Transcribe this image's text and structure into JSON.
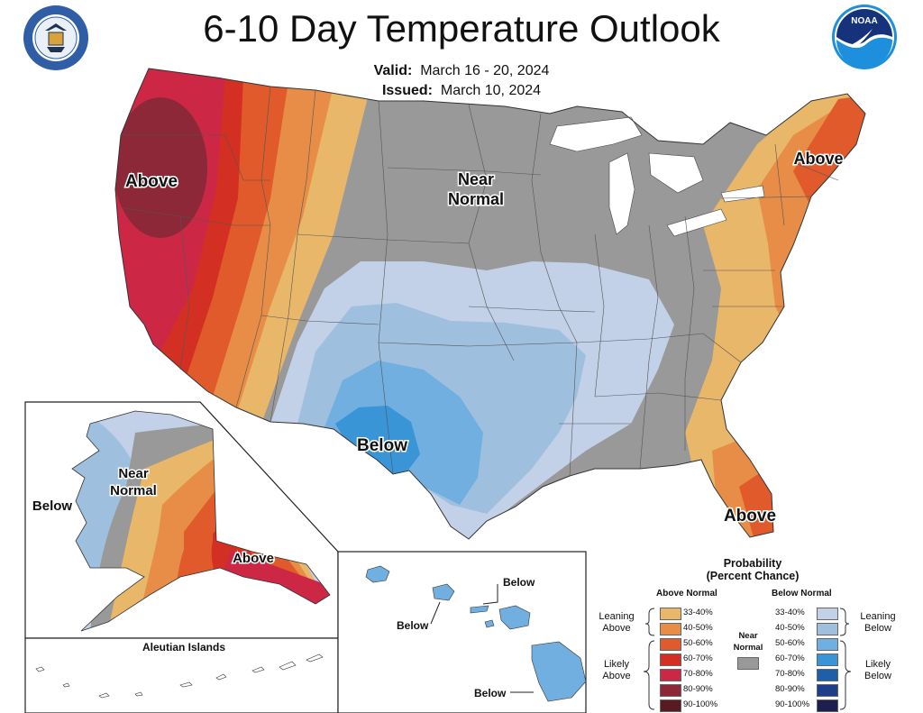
{
  "header": {
    "title": "6-10 Day Temperature Outlook",
    "valid_label": "Valid:",
    "valid_value": "March 16 - 20, 2024",
    "issued_label": "Issued:",
    "issued_value": "March 10, 2024",
    "seal_logo_text": "DEPARTMENT OF COMMERCE UNITED STATES OF AMERICA",
    "noaa_logo_text": "NOAA"
  },
  "map": {
    "labels": {
      "west_above": "Above",
      "near_normal_1": "Near",
      "near_normal_2": "Normal",
      "northeast_above": "Above",
      "southwest_below": "Below",
      "florida_above": "Above"
    },
    "alaska": {
      "below": "Below",
      "near_normal_1": "Near",
      "near_normal_2": "Normal",
      "above": "Above",
      "aleutian_title": "Aleutian Islands"
    },
    "hawaii": {
      "below_top": "Below",
      "below_left": "Below",
      "below_bottom": "Below"
    }
  },
  "legend": {
    "title_1": "Probability",
    "title_2": "(Percent Chance)",
    "above_heading": "Above Normal",
    "below_heading": "Below Normal",
    "near_label_1": "Near",
    "near_label_2": "Normal",
    "leaning_above_1": "Leaning",
    "leaning_above_2": "Above",
    "likely_above_1": "Likely",
    "likely_above_2": "Above",
    "leaning_below_1": "Leaning",
    "leaning_below_2": "Below",
    "likely_below_1": "Likely",
    "likely_below_2": "Below",
    "above_bins": [
      {
        "label": "33-40%",
        "color": "#e8b76a"
      },
      {
        "label": "40-50%",
        "color": "#e88d47"
      },
      {
        "label": "50-60%",
        "color": "#e05a2b"
      },
      {
        "label": "60-70%",
        "color": "#d42f23"
      },
      {
        "label": "70-80%",
        "color": "#cc2846"
      },
      {
        "label": "80-90%",
        "color": "#8c2838"
      },
      {
        "label": "90-100%",
        "color": "#5a1a22"
      }
    ],
    "below_bins": [
      {
        "label": "33-40%",
        "color": "#c2d0e8"
      },
      {
        "label": "40-50%",
        "color": "#9fbfdf"
      },
      {
        "label": "50-60%",
        "color": "#70afe0"
      },
      {
        "label": "60-70%",
        "color": "#3a95d6"
      },
      {
        "label": "70-80%",
        "color": "#1d5fa8"
      },
      {
        "label": "80-90%",
        "color": "#1e3d8a"
      },
      {
        "label": "90-100%",
        "color": "#1c1f4f"
      }
    ],
    "near_color": "#999999"
  }
}
